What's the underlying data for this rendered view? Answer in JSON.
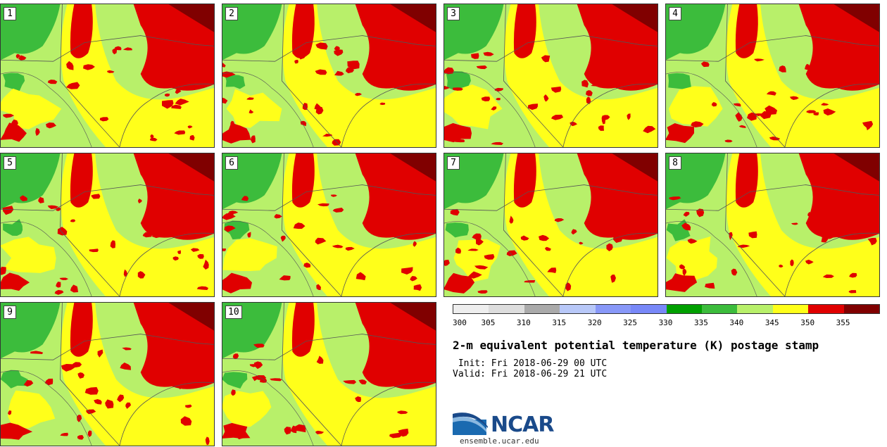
{
  "panels": [
    {
      "label": "1"
    },
    {
      "label": "2"
    },
    {
      "label": "3"
    },
    {
      "label": "4"
    },
    {
      "label": "5"
    },
    {
      "label": "6"
    },
    {
      "label": "7"
    },
    {
      "label": "8"
    },
    {
      "label": "9"
    },
    {
      "label": "10"
    }
  ],
  "colorbar": {
    "colors": [
      "#eeeeee",
      "#dddddd",
      "#aaaaaa",
      "#b8c8f8",
      "#8898f8",
      "#7888f8",
      "#00a000",
      "#3cbc3c",
      "#b8f06a",
      "#ffff1a",
      "#e00000",
      "#800000"
    ],
    "tick_labels": [
      "300",
      "305",
      "310",
      "315",
      "320",
      "325",
      "330",
      "335",
      "340",
      "345",
      "350",
      "355"
    ]
  },
  "title": "2-m equivalent potential temperature (K) postage stamp",
  "init": " Init: Fri 2018-06-29 00 UTC",
  "valid": "Valid: Fri 2018-06-29 21 UTC",
  "logo": {
    "name": "NCAR",
    "url": "ensemble.ucar.edu"
  },
  "map_colors": {
    "green": "#3cbc3c",
    "light_green": "#b8f06a",
    "yellow": "#ffff1a",
    "red": "#e00000",
    "dark_red": "#800000",
    "border": "#555555"
  }
}
